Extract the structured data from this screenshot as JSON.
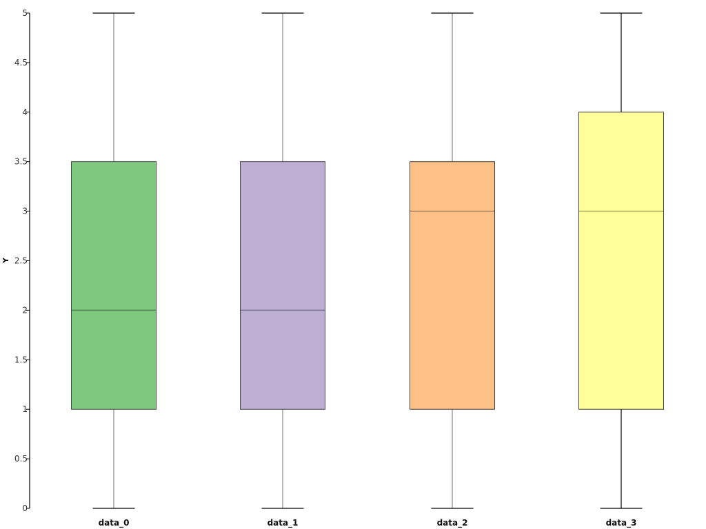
{
  "chart_data": {
    "type": "box",
    "title": "",
    "xlabel": "",
    "ylabel": "Y",
    "ylim": [
      0,
      5
    ],
    "yticks": [
      0,
      0.5,
      1,
      1.5,
      2,
      2.5,
      3,
      3.5,
      4,
      4.5,
      5
    ],
    "ytick_labels": [
      "0",
      "0.5",
      "1",
      "1.5",
      "2",
      "2.5",
      "3",
      "3.5",
      "4",
      "4.5",
      "5"
    ],
    "grid": false,
    "legend": null,
    "categories": [
      "data_0",
      "data_1",
      "data_2",
      "data_3"
    ],
    "series": [
      {
        "name": "data_0",
        "min": 0,
        "q1": 1,
        "median": 2,
        "q3": 3.5,
        "max": 5,
        "color": "#7fc97f"
      },
      {
        "name": "data_1",
        "min": 0,
        "q1": 1,
        "median": 2,
        "q3": 3.5,
        "max": 5,
        "color": "#beaed4"
      },
      {
        "name": "data_2",
        "min": 0,
        "q1": 1,
        "median": 3,
        "q3": 3.5,
        "max": 5,
        "color": "#fdc086"
      },
      {
        "name": "data_3",
        "min": 0,
        "q1": 1,
        "median": 3,
        "q3": 4,
        "max": 5,
        "color": "#ffff99"
      }
    ]
  }
}
